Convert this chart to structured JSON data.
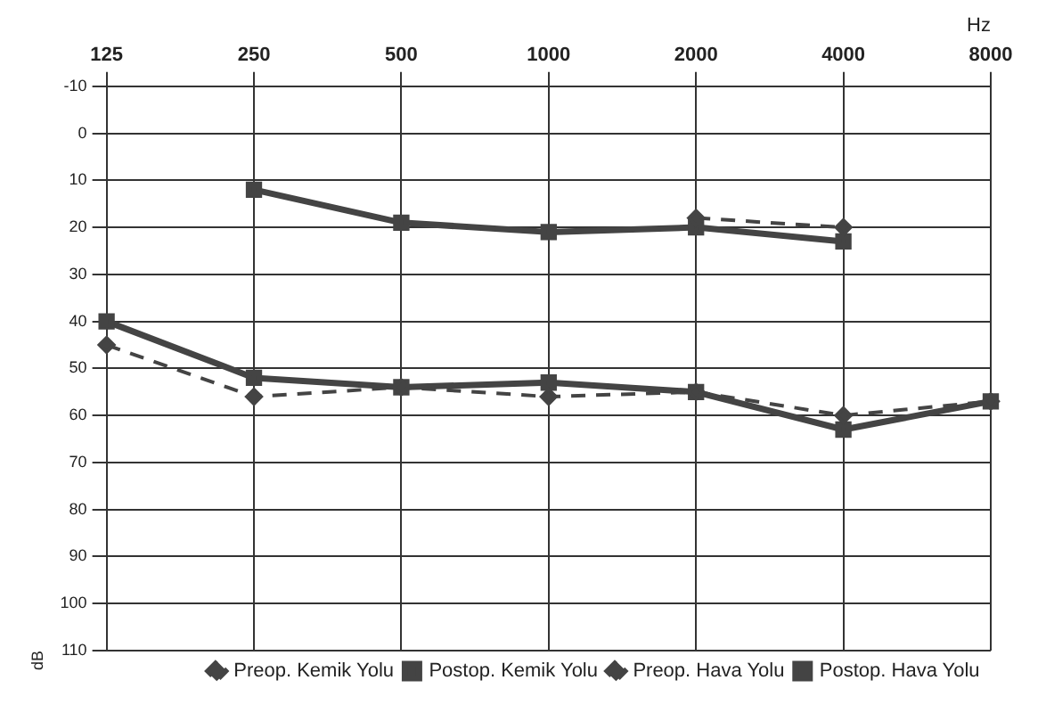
{
  "chart_data": {
    "type": "line",
    "xlabel": "Hz",
    "ylabel": "dB",
    "categories": [
      "125",
      "250",
      "500",
      "1000",
      "2000",
      "4000",
      "8000"
    ],
    "ylim": [
      110,
      -10
    ],
    "yticks": [
      -10,
      0,
      10,
      20,
      30,
      40,
      50,
      60,
      70,
      80,
      90,
      100,
      110
    ],
    "grid": true,
    "legend": "bottom",
    "series": [
      {
        "name": "Preop. Kemik Yolu",
        "color": "#444444",
        "marker": "diamond",
        "line_style": "dashed",
        "values": [
          null,
          null,
          null,
          null,
          18,
          20,
          null
        ]
      },
      {
        "name": "Postop. Kemik Yolu",
        "color": "#444444",
        "marker": "square",
        "line_style": "solid",
        "values": [
          null,
          12,
          19,
          21,
          20,
          23,
          null
        ]
      },
      {
        "name": "Preop. Hava Yolu",
        "color": "#444444",
        "marker": "diamond",
        "line_style": "dashed",
        "values": [
          45,
          56,
          54,
          56,
          55,
          60,
          57
        ]
      },
      {
        "name": "Postop. Hava Yolu",
        "color": "#444444",
        "marker": "square",
        "line_style": "solid",
        "values": [
          40,
          52,
          54,
          53,
          55,
          63,
          57
        ]
      }
    ]
  }
}
